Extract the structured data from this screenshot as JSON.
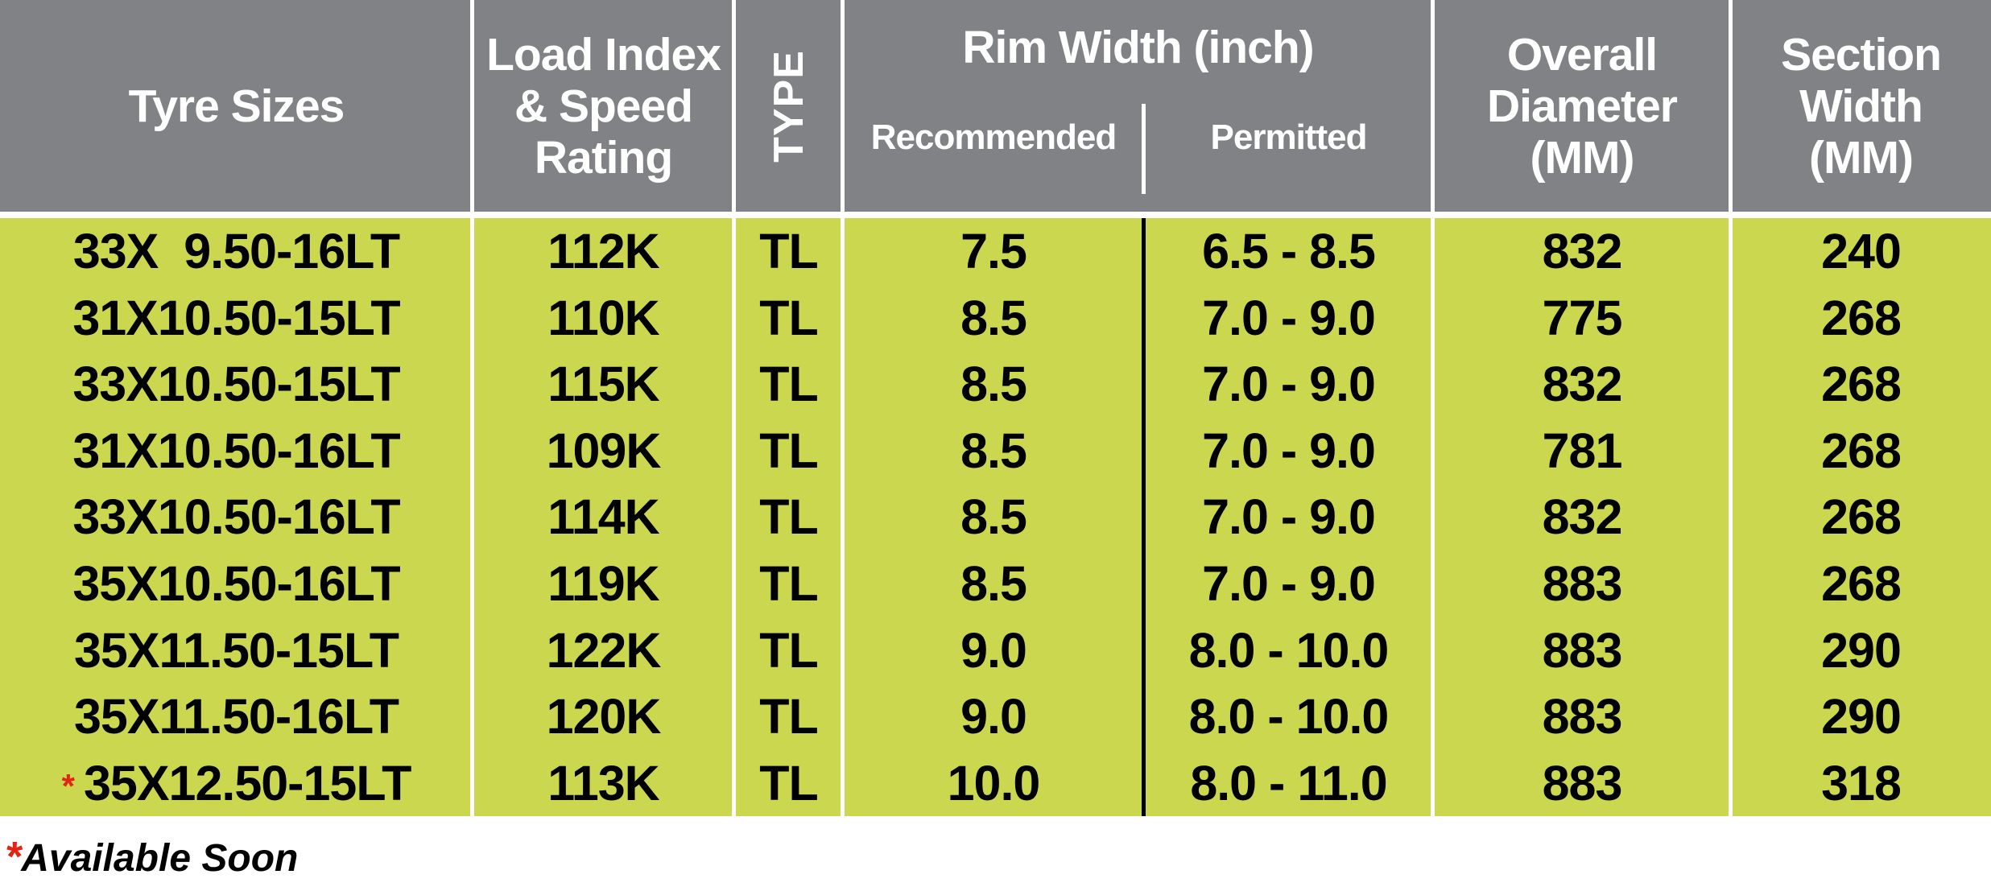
{
  "colors": {
    "header_bg": "#808285",
    "body_bg": "#ccd750",
    "accent_red": "#e42313",
    "grid_white": "#ffffff",
    "grid_black": "#000000",
    "header_text": "#ffffff",
    "body_text": "#000000"
  },
  "table": {
    "headers": {
      "tyre_sizes": "Tyre Sizes",
      "load_index_line1": "Load Index",
      "load_index_line2": "& Speed",
      "load_index_line3": "Rating",
      "type": "TYPE",
      "rim_width_group": "Rim Width (inch)",
      "recommended": "Recommended",
      "permitted": "Permitted",
      "overall_diameter_line1": "Overall",
      "overall_diameter_line2": "Diameter",
      "overall_diameter_line3": "(MM)",
      "section_width_line1": "Section",
      "section_width_line2": "Width",
      "section_width_line3": "(MM)"
    },
    "rows": [
      {
        "tyre": "33X  9.50-16LT",
        "load": "112K",
        "type": "TL",
        "rec": "7.5",
        "perm": "6.5 - 8.5",
        "od": "832",
        "sw": "240"
      },
      {
        "tyre": "31X10.50-15LT",
        "load": "110K",
        "type": "TL",
        "rec": "8.5",
        "perm": "7.0 - 9.0",
        "od": "775",
        "sw": "268"
      },
      {
        "tyre": "33X10.50-15LT",
        "load": "115K",
        "type": "TL",
        "rec": "8.5",
        "perm": "7.0 - 9.0",
        "od": "832",
        "sw": "268"
      },
      {
        "tyre": "31X10.50-16LT",
        "load": "109K",
        "type": "TL",
        "rec": "8.5",
        "perm": "7.0 - 9.0",
        "od": "781",
        "sw": "268"
      },
      {
        "tyre": "33X10.50-16LT",
        "load": "114K",
        "type": "TL",
        "rec": "8.5",
        "perm": "7.0 - 9.0",
        "od": "832",
        "sw": "268"
      },
      {
        "tyre": "35X10.50-16LT",
        "load": "119K",
        "type": "TL",
        "rec": "8.5",
        "perm": "7.0 - 9.0",
        "od": "883",
        "sw": "268"
      },
      {
        "tyre": "35X11.50-15LT",
        "load": "122K",
        "type": "TL",
        "rec": "9.0",
        "perm": "8.0 - 10.0",
        "od": "883",
        "sw": "290"
      },
      {
        "tyre": "35X11.50-16LT",
        "load": "120K",
        "type": "TL",
        "rec": "9.0",
        "perm": "8.0 - 10.0",
        "od": "883",
        "sw": "290"
      },
      {
        "tyre": "35X12.50-15LT",
        "load": "113K",
        "type": "TL",
        "rec": "10.0",
        "perm": "8.0 - 11.0",
        "od": "883",
        "sw": "318",
        "marker": "*"
      }
    ]
  },
  "footnote": {
    "marker": "*",
    "text": "Available Soon"
  }
}
